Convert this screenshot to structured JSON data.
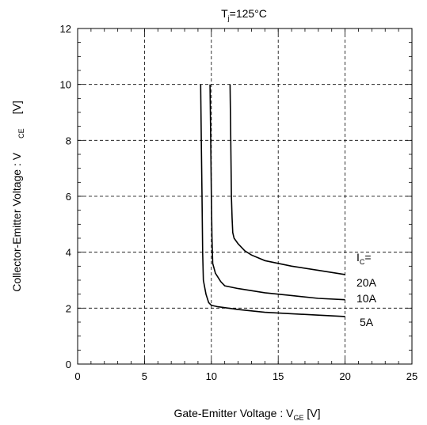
{
  "chart_data": {
    "type": "line",
    "title": {
      "main": "T",
      "sub": "j",
      "rest": "=125°C"
    },
    "xlabel": {
      "main": "Gate-Emitter Voltage  :  V",
      "sub": "GE",
      "unit": "  [V]"
    },
    "ylabel": {
      "main": "Collector-Emitter Voltage  :  V",
      "sub": "CE",
      "unit": "[V]"
    },
    "xlim": [
      0,
      25
    ],
    "ylim": [
      0,
      12
    ],
    "xticks": [
      0,
      5,
      10,
      15,
      20,
      25
    ],
    "yticks": [
      0,
      2,
      4,
      6,
      8,
      10,
      12
    ],
    "xtick_labels": [
      "0",
      "5",
      "10",
      "15",
      "20",
      "25"
    ],
    "ytick_labels": [
      "0",
      "2",
      "4",
      "6",
      "8",
      "10",
      "12"
    ],
    "grid": true,
    "legend_header": {
      "main": "I",
      "sub": "C",
      "rest": "="
    },
    "series": [
      {
        "name": "20A",
        "x": [
          11.4,
          11.45,
          11.5,
          11.55,
          11.6,
          11.7,
          12.0,
          12.5,
          13.0,
          14.0,
          15.0,
          16.0,
          18.0,
          20.0
        ],
        "y": [
          10.0,
          8.0,
          6.0,
          5.2,
          4.7,
          4.5,
          4.3,
          4.05,
          3.9,
          3.7,
          3.6,
          3.5,
          3.35,
          3.2
        ]
      },
      {
        "name": "10A",
        "x": [
          9.9,
          9.95,
          10.0,
          10.05,
          10.1,
          10.3,
          10.7,
          11.0,
          12.0,
          14.0,
          16.0,
          18.0,
          20.0
        ],
        "y": [
          10.0,
          8.0,
          6.0,
          4.5,
          3.6,
          3.25,
          2.95,
          2.8,
          2.7,
          2.55,
          2.45,
          2.35,
          2.3
        ]
      },
      {
        "name": "5A",
        "x": [
          9.2,
          9.25,
          9.3,
          9.35,
          9.4,
          9.6,
          9.8,
          10.0,
          10.5,
          12.0,
          14.0,
          16.0,
          18.0,
          20.0
        ],
        "y": [
          10.0,
          8.0,
          6.0,
          4.0,
          3.0,
          2.5,
          2.2,
          2.1,
          2.05,
          1.95,
          1.85,
          1.8,
          1.75,
          1.7
        ]
      }
    ]
  }
}
